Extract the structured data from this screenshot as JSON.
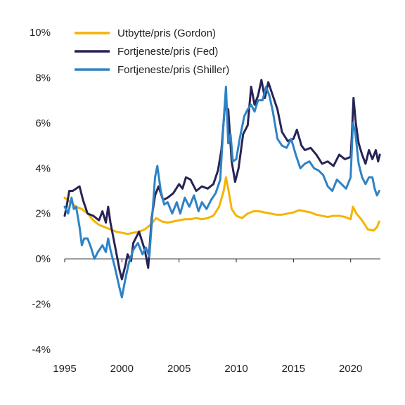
{
  "chart_data": {
    "type": "line",
    "title": "",
    "xlabel": "",
    "ylabel": "",
    "xlim": [
      1995,
      2022.6
    ],
    "ylim": [
      -4,
      10
    ],
    "x_ticks": [
      1995,
      2000,
      2005,
      2010,
      2015,
      2020
    ],
    "y_ticks": [
      -4,
      -2,
      0,
      2,
      4,
      6,
      8,
      10
    ],
    "y_tick_suffix": "%",
    "grid": false,
    "legend_position": "top",
    "series": [
      {
        "name": "Utbytte/pris (Gordon)",
        "color": "#f4b400",
        "points": [
          [
            1995,
            2.7
          ],
          [
            1995.5,
            2.5
          ],
          [
            1996,
            2.3
          ],
          [
            1996.5,
            2.2
          ],
          [
            1997,
            2.0
          ],
          [
            1997.5,
            1.7
          ],
          [
            1998,
            1.5
          ],
          [
            1998.5,
            1.4
          ],
          [
            1999,
            1.3
          ],
          [
            1999.5,
            1.2
          ],
          [
            2000,
            1.15
          ],
          [
            2000.5,
            1.1
          ],
          [
            2001,
            1.15
          ],
          [
            2001.5,
            1.2
          ],
          [
            2002,
            1.3
          ],
          [
            2002.5,
            1.5
          ],
          [
            2003,
            1.8
          ],
          [
            2003.5,
            1.65
          ],
          [
            2004,
            1.6
          ],
          [
            2004.5,
            1.65
          ],
          [
            2005,
            1.7
          ],
          [
            2005.5,
            1.75
          ],
          [
            2006,
            1.75
          ],
          [
            2006.5,
            1.8
          ],
          [
            2007,
            1.75
          ],
          [
            2007.5,
            1.8
          ],
          [
            2008,
            1.9
          ],
          [
            2008.5,
            2.3
          ],
          [
            2008.9,
            3.0
          ],
          [
            2009.1,
            3.6
          ],
          [
            2009.3,
            3.1
          ],
          [
            2009.6,
            2.2
          ],
          [
            2010,
            1.9
          ],
          [
            2010.5,
            1.8
          ],
          [
            2011,
            2.0
          ],
          [
            2011.5,
            2.1
          ],
          [
            2012,
            2.1
          ],
          [
            2012.5,
            2.05
          ],
          [
            2013,
            2.0
          ],
          [
            2013.5,
            1.95
          ],
          [
            2014,
            1.95
          ],
          [
            2014.5,
            2.0
          ],
          [
            2015,
            2.05
          ],
          [
            2015.5,
            2.15
          ],
          [
            2016,
            2.1
          ],
          [
            2016.5,
            2.05
          ],
          [
            2017,
            1.95
          ],
          [
            2017.5,
            1.9
          ],
          [
            2018,
            1.85
          ],
          [
            2018.5,
            1.9
          ],
          [
            2019,
            1.9
          ],
          [
            2019.5,
            1.85
          ],
          [
            2020,
            1.75
          ],
          [
            2020.2,
            2.3
          ],
          [
            2020.5,
            2.0
          ],
          [
            2021,
            1.7
          ],
          [
            2021.5,
            1.3
          ],
          [
            2022,
            1.25
          ],
          [
            2022.3,
            1.4
          ],
          [
            2022.5,
            1.65
          ]
        ]
      },
      {
        "name": "Fortjeneste/pris (Fed)",
        "color": "#262455",
        "points": [
          [
            1995,
            1.9
          ],
          [
            1995.2,
            2.4
          ],
          [
            1995.4,
            3.0
          ],
          [
            1995.7,
            3.0
          ],
          [
            1996,
            3.1
          ],
          [
            1996.3,
            3.2
          ],
          [
            1996.6,
            2.6
          ],
          [
            1997,
            2.0
          ],
          [
            1997.5,
            1.9
          ],
          [
            1998,
            1.7
          ],
          [
            1998.3,
            2.1
          ],
          [
            1998.6,
            1.6
          ],
          [
            1998.8,
            2.3
          ],
          [
            1999,
            1.6
          ],
          [
            1999.5,
            0.3
          ],
          [
            1999.8,
            -0.5
          ],
          [
            2000,
            -0.9
          ],
          [
            2000.3,
            -0.3
          ],
          [
            2000.5,
            0.2
          ],
          [
            2000.8,
            -0.1
          ],
          [
            2001,
            0.7
          ],
          [
            2001.5,
            1.2
          ],
          [
            2002,
            0.4
          ],
          [
            2002.3,
            -0.4
          ],
          [
            2002.6,
            1.8
          ],
          [
            2002.9,
            2.8
          ],
          [
            2003.2,
            3.2
          ],
          [
            2003.6,
            2.6
          ],
          [
            2004,
            2.7
          ],
          [
            2004.5,
            2.9
          ],
          [
            2005,
            3.3
          ],
          [
            2005.3,
            3.1
          ],
          [
            2005.6,
            3.6
          ],
          [
            2006,
            3.5
          ],
          [
            2006.5,
            3.0
          ],
          [
            2007,
            3.2
          ],
          [
            2007.5,
            3.1
          ],
          [
            2008,
            3.3
          ],
          [
            2008.4,
            3.9
          ],
          [
            2008.7,
            4.8
          ],
          [
            2009,
            6.7
          ],
          [
            2009.3,
            6.6
          ],
          [
            2009.6,
            4.3
          ],
          [
            2009.9,
            3.4
          ],
          [
            2010.2,
            4.0
          ],
          [
            2010.6,
            5.5
          ],
          [
            2011,
            5.9
          ],
          [
            2011.3,
            7.6
          ],
          [
            2011.6,
            6.8
          ],
          [
            2011.9,
            7.2
          ],
          [
            2012.2,
            7.9
          ],
          [
            2012.5,
            7.1
          ],
          [
            2012.8,
            7.8
          ],
          [
            2013.2,
            7.2
          ],
          [
            2013.6,
            6.6
          ],
          [
            2014,
            5.6
          ],
          [
            2014.5,
            5.2
          ],
          [
            2015,
            5.3
          ],
          [
            2015.3,
            5.7
          ],
          [
            2015.7,
            5.0
          ],
          [
            2016,
            4.8
          ],
          [
            2016.5,
            4.9
          ],
          [
            2017,
            4.6
          ],
          [
            2017.5,
            4.2
          ],
          [
            2018,
            4.3
          ],
          [
            2018.5,
            4.1
          ],
          [
            2019,
            4.6
          ],
          [
            2019.5,
            4.4
          ],
          [
            2020,
            4.5
          ],
          [
            2020.1,
            5.4
          ],
          [
            2020.25,
            7.1
          ],
          [
            2020.45,
            6.0
          ],
          [
            2020.7,
            5.1
          ],
          [
            2021,
            4.6
          ],
          [
            2021.3,
            4.2
          ],
          [
            2021.6,
            4.8
          ],
          [
            2021.9,
            4.4
          ],
          [
            2022.2,
            4.8
          ],
          [
            2022.4,
            4.3
          ],
          [
            2022.55,
            4.6
          ]
        ]
      },
      {
        "name": "Fortjeneste/pris (Shiller)",
        "color": "#2e83c6",
        "points": [
          [
            1995,
            2.3
          ],
          [
            1995.3,
            2.0
          ],
          [
            1995.6,
            2.7
          ],
          [
            1995.8,
            2.2
          ],
          [
            1996,
            2.3
          ],
          [
            1996.3,
            1.4
          ],
          [
            1996.5,
            0.6
          ],
          [
            1996.7,
            0.9
          ],
          [
            1997,
            0.9
          ],
          [
            1997.3,
            0.5
          ],
          [
            1997.6,
            0.0
          ],
          [
            1997.9,
            0.3
          ],
          [
            1998.3,
            0.6
          ],
          [
            1998.6,
            0.3
          ],
          [
            1998.8,
            0.9
          ],
          [
            1999,
            0.4
          ],
          [
            1999.4,
            -0.4
          ],
          [
            1999.8,
            -1.3
          ],
          [
            2000,
            -1.7
          ],
          [
            2000.3,
            -0.9
          ],
          [
            2000.6,
            -0.2
          ],
          [
            2001,
            0.4
          ],
          [
            2001.4,
            0.7
          ],
          [
            2001.8,
            0.2
          ],
          [
            2002.1,
            0.5
          ],
          [
            2002.4,
            0.1
          ],
          [
            2002.7,
            2.2
          ],
          [
            2002.9,
            3.6
          ],
          [
            2003.1,
            4.1
          ],
          [
            2003.4,
            3.0
          ],
          [
            2003.7,
            2.4
          ],
          [
            2004,
            2.5
          ],
          [
            2004.4,
            2.0
          ],
          [
            2004.8,
            2.5
          ],
          [
            2005.1,
            2.0
          ],
          [
            2005.5,
            2.7
          ],
          [
            2005.9,
            2.3
          ],
          [
            2006.3,
            2.8
          ],
          [
            2006.7,
            2.1
          ],
          [
            2007,
            2.5
          ],
          [
            2007.4,
            2.2
          ],
          [
            2007.8,
            2.6
          ],
          [
            2008.2,
            2.9
          ],
          [
            2008.6,
            3.5
          ],
          [
            2008.9,
            6.1
          ],
          [
            2009.1,
            7.6
          ],
          [
            2009.3,
            5.1
          ],
          [
            2009.5,
            5.5
          ],
          [
            2009.7,
            4.3
          ],
          [
            2010,
            4.4
          ],
          [
            2010.3,
            5.3
          ],
          [
            2010.7,
            6.3
          ],
          [
            2011,
            6.6
          ],
          [
            2011.3,
            6.8
          ],
          [
            2011.6,
            6.5
          ],
          [
            2011.9,
            7.0
          ],
          [
            2012.3,
            7.0
          ],
          [
            2012.6,
            7.6
          ],
          [
            2012.9,
            7.2
          ],
          [
            2013.2,
            6.5
          ],
          [
            2013.6,
            5.3
          ],
          [
            2014,
            5.0
          ],
          [
            2014.4,
            4.9
          ],
          [
            2014.8,
            5.3
          ],
          [
            2015.2,
            4.6
          ],
          [
            2015.6,
            4.0
          ],
          [
            2016,
            4.2
          ],
          [
            2016.4,
            4.3
          ],
          [
            2016.8,
            4.0
          ],
          [
            2017.2,
            3.9
          ],
          [
            2017.6,
            3.7
          ],
          [
            2018,
            3.2
          ],
          [
            2018.4,
            3.0
          ],
          [
            2018.8,
            3.5
          ],
          [
            2019.2,
            3.3
          ],
          [
            2019.6,
            3.1
          ],
          [
            2020,
            3.6
          ],
          [
            2020.2,
            6.0
          ],
          [
            2020.4,
            5.6
          ],
          [
            2020.7,
            4.2
          ],
          [
            2021,
            3.6
          ],
          [
            2021.3,
            3.3
          ],
          [
            2021.6,
            3.6
          ],
          [
            2021.9,
            3.6
          ],
          [
            2022.1,
            3.1
          ],
          [
            2022.3,
            2.8
          ],
          [
            2022.5,
            3.0
          ]
        ]
      }
    ]
  }
}
